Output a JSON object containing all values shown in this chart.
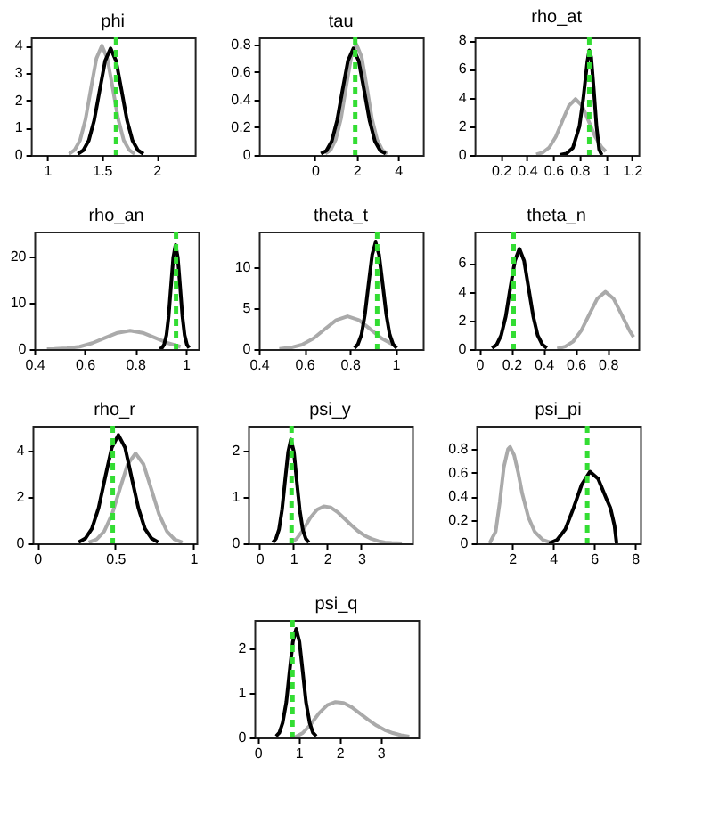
{
  "chart_data": [
    {
      "type": "line",
      "title": "phi",
      "xlim": [
        0.85,
        2.35
      ],
      "xticks": [
        1,
        1.5,
        2
      ],
      "ylim": [
        0,
        4.3
      ],
      "yticks": [
        0,
        1,
        2,
        3,
        4
      ],
      "series": [
        {
          "color": "#aaaaaa",
          "x": [
            1.2,
            1.25,
            1.3,
            1.35,
            1.4,
            1.45,
            1.5,
            1.55,
            1.6,
            1.65,
            1.7,
            1.75,
            1.8
          ],
          "values": [
            0.04,
            0.18,
            0.54,
            1.3,
            2.43,
            3.53,
            4,
            3.53,
            2.43,
            1.3,
            0.54,
            0.18,
            0.04
          ]
        },
        {
          "color": "#000000",
          "x": [
            1.28,
            1.33,
            1.38,
            1.43,
            1.48,
            1.53,
            1.58,
            1.63,
            1.68,
            1.73,
            1.78,
            1.83,
            1.88
          ],
          "values": [
            0.04,
            0.17,
            0.53,
            1.27,
            2.37,
            3.44,
            3.9,
            3.44,
            2.37,
            1.27,
            0.53,
            0.17,
            0.04
          ]
        }
      ],
      "ref_lines": [
        {
          "axis": "x",
          "value": 1.63,
          "color": "#33dd33",
          "line_style": "dashed"
        }
      ]
    },
    {
      "type": "line",
      "title": "tau",
      "xlim": [
        -2.7,
        5.2
      ],
      "xticks": [
        0,
        2,
        4
      ],
      "ylim": [
        0,
        0.85
      ],
      "yticks": [
        0,
        0.2,
        0.4,
        0.6,
        0.8
      ],
      "series": [
        {
          "color": "#aaaaaa",
          "x": [
            0.5,
            0.75,
            1,
            1.25,
            1.5,
            1.75,
            2,
            2.25,
            2.5,
            2.75,
            3,
            3.25,
            3.5
          ],
          "values": [
            0.01,
            0.035,
            0.11,
            0.26,
            0.49,
            0.71,
            0.8,
            0.71,
            0.49,
            0.26,
            0.11,
            0.035,
            0.01
          ]
        },
        {
          "color": "#000000",
          "x": [
            0.29,
            0.55,
            0.81,
            1.07,
            1.33,
            1.59,
            1.85,
            2.11,
            2.37,
            2.63,
            2.89,
            3.15,
            3.41
          ],
          "values": [
            0.01,
            0.03,
            0.1,
            0.25,
            0.47,
            0.68,
            0.77,
            0.68,
            0.47,
            0.25,
            0.1,
            0.03,
            0.01
          ]
        }
      ],
      "ref_lines": [
        {
          "axis": "x",
          "value": 1.94,
          "color": "#33dd33",
          "line_style": "dashed"
        }
      ]
    },
    {
      "type": "line",
      "title": "rho_at",
      "xlim": [
        0,
        1.25
      ],
      "xticks": [
        0.2,
        0.4,
        0.6,
        0.8,
        1,
        1.2
      ],
      "ylim": [
        0,
        8.2
      ],
      "yticks": [
        0,
        2,
        4,
        6,
        8
      ],
      "series": [
        {
          "color": "#aaaaaa",
          "x": [
            0.47,
            0.52,
            0.57,
            0.62,
            0.67,
            0.72,
            0.77,
            0.82,
            0.87,
            0.92,
            0.97,
            1.0
          ],
          "values": [
            0.04,
            0.17,
            0.53,
            1.27,
            2.37,
            3.44,
            3.9,
            3.44,
            2.37,
            1.27,
            0.53,
            0.25
          ]
        },
        {
          "color": "#000000",
          "x": [
            0.65,
            0.7,
            0.75,
            0.8,
            0.83,
            0.86,
            0.875,
            0.89,
            0.91,
            0.93,
            0.95,
            0.97
          ],
          "values": [
            0,
            0.1,
            0.5,
            2,
            4,
            6.5,
            7.3,
            6.8,
            4.5,
            2,
            0.4,
            0
          ]
        }
      ],
      "ref_lines": [
        {
          "axis": "x",
          "value": 0.875,
          "color": "#33dd33",
          "line_style": "dashed"
        }
      ]
    },
    {
      "type": "line",
      "title": "rho_an",
      "xlim": [
        0.4,
        1.05
      ],
      "xticks": [
        0.4,
        0.6,
        0.8,
        1
      ],
      "ylim": [
        0,
        25.5
      ],
      "yticks": [
        0,
        10,
        20
      ],
      "series": [
        {
          "color": "#aaaaaa",
          "x": [
            0.45,
            0.48,
            0.53,
            0.58,
            0.63,
            0.68,
            0.73,
            0.78,
            0.83,
            0.88,
            0.93,
            0.98
          ],
          "values": [
            0,
            0.04,
            0.18,
            0.54,
            1.3,
            2.43,
            3.53,
            4,
            3.53,
            2.43,
            1.3,
            0.54
          ]
        },
        {
          "color": "#000000",
          "x": [
            0.897,
            0.906,
            0.915,
            0.924,
            0.933,
            0.942,
            0.951,
            0.96,
            0.969,
            0.978,
            0.987,
            0.996,
            1.005,
            1.014
          ],
          "values": [
            0.05,
            0.25,
            1,
            3.05,
            7.3,
            13.7,
            19.9,
            22.6,
            19.9,
            13.7,
            7.3,
            3.05,
            1,
            0.25
          ]
        }
      ],
      "ref_lines": [
        {
          "axis": "x",
          "value": 0.962,
          "color": "#33dd33",
          "line_style": "dashed"
        }
      ]
    },
    {
      "type": "line",
      "title": "theta_t",
      "xlim": [
        0.4,
        1.12
      ],
      "xticks": [
        0.4,
        0.6,
        0.8,
        1
      ],
      "ylim": [
        0,
        14.3
      ],
      "yticks": [
        0,
        5,
        10
      ],
      "series": [
        {
          "color": "#aaaaaa",
          "x": [
            0.49,
            0.54,
            0.59,
            0.64,
            0.69,
            0.74,
            0.79,
            0.84,
            0.89,
            0.94,
            0.99
          ],
          "values": [
            0.04,
            0.18,
            0.54,
            1.3,
            2.43,
            3.53,
            4,
            3.53,
            2.43,
            1.3,
            0.54
          ]
        },
        {
          "color": "#000000",
          "x": [
            0.82,
            0.835,
            0.851,
            0.866,
            0.882,
            0.898,
            0.913,
            0.928,
            0.944,
            0.96,
            0.975,
            0.99,
            1.006
          ],
          "values": [
            0.14,
            0.57,
            1.76,
            4.2,
            7.9,
            11.5,
            13,
            11.5,
            7.9,
            4.2,
            1.76,
            0.57,
            0.14
          ]
        }
      ],
      "ref_lines": [
        {
          "axis": "x",
          "value": 0.92,
          "color": "#33dd33",
          "line_style": "dashed"
        }
      ]
    },
    {
      "type": "line",
      "title": "theta_n",
      "xlim": [
        -0.03,
        0.99
      ],
      "xticks": [
        0,
        0.2,
        0.4,
        0.6,
        0.8
      ],
      "ylim": [
        0,
        8.2
      ],
      "yticks": [
        0,
        2,
        4,
        6
      ],
      "series": [
        {
          "color": "#aaaaaa",
          "x": [
            0.485,
            0.535,
            0.585,
            0.635,
            0.685,
            0.735,
            0.785,
            0.835,
            0.885,
            0.935,
            0.96
          ],
          "values": [
            0.04,
            0.18,
            0.54,
            1.3,
            2.43,
            3.53,
            4,
            3.53,
            2.43,
            1.3,
            0.85
          ]
        },
        {
          "color": "#000000",
          "x": [
            0.079,
            0.108,
            0.136,
            0.165,
            0.193,
            0.222,
            0.25,
            0.279,
            0.307,
            0.336,
            0.364,
            0.393,
            0.421
          ],
          "values": [
            0.08,
            0.31,
            0.95,
            2.28,
            4.25,
            6.17,
            7,
            6.17,
            4.25,
            2.28,
            0.95,
            0.31,
            0.08
          ]
        }
      ],
      "ref_lines": [
        {
          "axis": "x",
          "value": 0.214,
          "color": "#33dd33",
          "line_style": "dashed"
        }
      ]
    },
    {
      "type": "line",
      "title": "rho_r",
      "xlim": [
        -0.03,
        1.02
      ],
      "xticks": [
        0,
        0.5,
        1
      ],
      "ylim": [
        0,
        5.1
      ],
      "yticks": [
        0,
        2,
        4
      ],
      "series": [
        {
          "color": "#aaaaaa",
          "x": [
            0.33,
            0.38,
            0.43,
            0.48,
            0.53,
            0.58,
            0.63,
            0.68,
            0.73,
            0.78,
            0.83,
            0.88,
            0.93
          ],
          "values": [
            0.04,
            0.17,
            0.53,
            1.27,
            2.37,
            3.44,
            3.9,
            3.44,
            2.37,
            1.27,
            0.53,
            0.17,
            0.04
          ]
        },
        {
          "color": "#000000",
          "x": [
            0.265,
            0.308,
            0.35,
            0.393,
            0.435,
            0.478,
            0.52,
            0.563,
            0.605,
            0.648,
            0.69,
            0.733,
            0.775
          ],
          "values": [
            0.05,
            0.21,
            0.63,
            1.53,
            2.85,
            4.15,
            4.7,
            4.15,
            2.85,
            1.53,
            0.63,
            0.21,
            0.05
          ]
        }
      ],
      "ref_lines": [
        {
          "axis": "x",
          "value": 0.484,
          "color": "#33dd33",
          "line_style": "dashed"
        }
      ]
    },
    {
      "type": "line",
      "title": "psi_y",
      "xlim": [
        -0.33,
        4.5
      ],
      "xticks": [
        0,
        1,
        2,
        3
      ],
      "ylim": [
        0,
        2.55
      ],
      "yticks": [
        0,
        1,
        2
      ],
      "series": [
        {
          "color": "#aaaaaa",
          "x": [
            0.9,
            1.1,
            1.3,
            1.5,
            1.7,
            1.9,
            2.1,
            2.3,
            2.5,
            2.7,
            2.9,
            3.1,
            3.3,
            3.5,
            3.7,
            3.9,
            4.2
          ],
          "values": [
            0,
            0.1,
            0.3,
            0.55,
            0.73,
            0.8,
            0.78,
            0.68,
            0.54,
            0.4,
            0.27,
            0.17,
            0.1,
            0.05,
            0.02,
            0.01,
            0
          ]
        },
        {
          "color": "#000000",
          "x": [
            0.4,
            0.49,
            0.58,
            0.67,
            0.76,
            0.85,
            0.93,
            1.02,
            1.1,
            1.19,
            1.28,
            1.37,
            1.46
          ],
          "values": [
            0.02,
            0.1,
            0.3,
            0.73,
            1.37,
            1.98,
            2.25,
            1.98,
            1.37,
            0.73,
            0.3,
            0.1,
            0.02
          ]
        }
      ],
      "ref_lines": [
        {
          "axis": "x",
          "value": 0.95,
          "color": "#33dd33",
          "line_style": "dashed"
        }
      ]
    },
    {
      "type": "line",
      "title": "psi_pi",
      "xlim": [
        0.25,
        8.25
      ],
      "xticks": [
        2,
        4,
        6,
        8
      ],
      "ylim": [
        0,
        1
      ],
      "yticks": [
        0,
        0.2,
        0.4,
        0.6,
        0.8
      ],
      "series": [
        {
          "color": "#aaaaaa",
          "x": [
            0.9,
            1.2,
            1.4,
            1.6,
            1.8,
            1.9,
            2.1,
            2.3,
            2.5,
            2.8,
            3.1,
            3.5,
            4
          ],
          "values": [
            0,
            0.1,
            0.35,
            0.65,
            0.8,
            0.82,
            0.75,
            0.6,
            0.42,
            0.22,
            0.1,
            0.03,
            0
          ]
        },
        {
          "color": "#000000",
          "x": [
            3.8,
            4.2,
            4.6,
            5,
            5.4,
            5.8,
            6.2,
            6.6,
            6.8,
            7,
            7.1
          ],
          "values": [
            0,
            0.03,
            0.12,
            0.3,
            0.5,
            0.61,
            0.55,
            0.38,
            0.3,
            0.15,
            0
          ]
        }
      ],
      "ref_lines": [
        {
          "axis": "x",
          "value": 5.67,
          "color": "#33dd33",
          "line_style": "dashed"
        }
      ]
    },
    {
      "type": "line",
      "title": "psi_q",
      "xlim": [
        -0.08,
        3.92
      ],
      "xticks": [
        0,
        1,
        2,
        3
      ],
      "ylim": [
        0,
        2.65
      ],
      "yticks": [
        0,
        1,
        2
      ],
      "series": [
        {
          "color": "#aaaaaa",
          "x": [
            0.9,
            1.1,
            1.3,
            1.5,
            1.7,
            1.9,
            2.1,
            2.3,
            2.5,
            2.7,
            2.9,
            3.1,
            3.3,
            3.5,
            3.7
          ],
          "values": [
            0,
            0.1,
            0.3,
            0.55,
            0.73,
            0.8,
            0.78,
            0.68,
            0.54,
            0.4,
            0.27,
            0.17,
            0.1,
            0.05,
            0.02
          ]
        },
        {
          "color": "#000000",
          "x": [
            0.45,
            0.53,
            0.61,
            0.7,
            0.78,
            0.86,
            0.94,
            1.02,
            1.1,
            1.18,
            1.27,
            1.35,
            1.43
          ],
          "values": [
            0.03,
            0.11,
            0.33,
            0.8,
            1.49,
            2.16,
            2.45,
            2.16,
            1.49,
            0.8,
            0.33,
            0.11,
            0.03
          ]
        }
      ],
      "ref_lines": [
        {
          "axis": "x",
          "value": 0.85,
          "color": "#33dd33",
          "line_style": "dashed"
        }
      ]
    }
  ]
}
